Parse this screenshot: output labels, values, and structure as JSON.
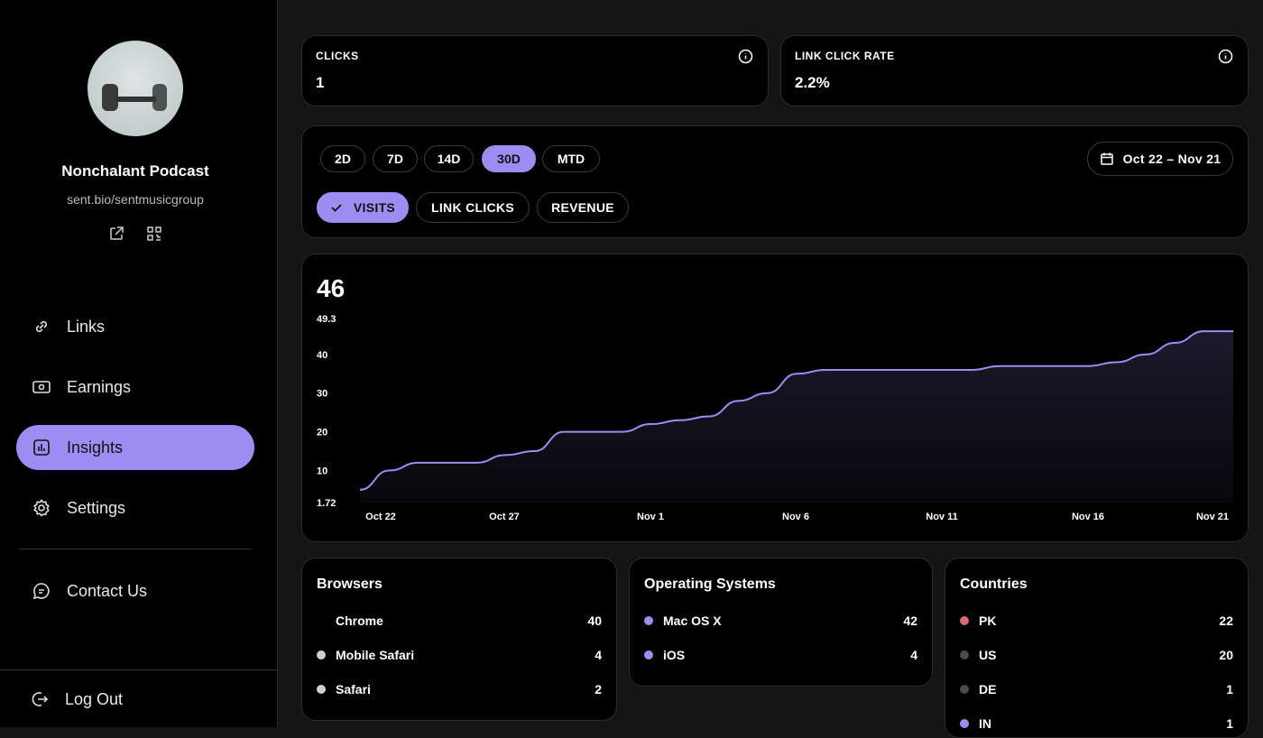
{
  "profile": {
    "name": "Nonchalant Podcast",
    "url": "sent.bio/sentmusicgroup"
  },
  "nav": [
    {
      "label": "Links",
      "icon": "link-icon"
    },
    {
      "label": "Earnings",
      "icon": "money-icon"
    },
    {
      "label": "Insights",
      "icon": "chart-icon",
      "active": true
    },
    {
      "label": "Settings",
      "icon": "gear-icon"
    },
    {
      "label": "Contact Us",
      "icon": "chat-icon"
    },
    {
      "label": "Log Out",
      "icon": "logout-icon"
    }
  ],
  "kpis": [
    {
      "label": "CLICKS",
      "value": "1"
    },
    {
      "label": "LINK CLICK RATE",
      "value": "2.2%"
    }
  ],
  "ranges": [
    "2D",
    "7D",
    "14D",
    "30D",
    "MTD"
  ],
  "active_range": "30D",
  "date_range": "Oct 22 – Nov 21",
  "metrics": [
    "VISITS",
    "LINK CLICKS",
    "REVENUE"
  ],
  "active_metric": "VISITS",
  "accent": "#9d8cf2",
  "chart_data": {
    "type": "area",
    "total": "46",
    "ylim": [
      1.72,
      49.3
    ],
    "yticks": [
      "49.3",
      "40",
      "30",
      "20",
      "10",
      "1.72"
    ],
    "xticks": [
      "Oct 22",
      "Oct 27",
      "Nov 1",
      "Nov 6",
      "Nov 11",
      "Nov 16",
      "Nov 21"
    ],
    "x": [
      "Oct 22",
      "Oct 23",
      "Oct 24",
      "Oct 25",
      "Oct 26",
      "Oct 27",
      "Oct 28",
      "Oct 29",
      "Oct 30",
      "Oct 31",
      "Nov 1",
      "Nov 2",
      "Nov 3",
      "Nov 4",
      "Nov 5",
      "Nov 6",
      "Nov 7",
      "Nov 8",
      "Nov 9",
      "Nov 10",
      "Nov 11",
      "Nov 12",
      "Nov 13",
      "Nov 14",
      "Nov 15",
      "Nov 16",
      "Nov 17",
      "Nov 18",
      "Nov 19",
      "Nov 20",
      "Nov 21"
    ],
    "values": [
      5,
      10,
      12,
      12,
      12,
      14,
      15,
      20,
      20,
      20,
      22,
      23,
      24,
      28,
      30,
      35,
      36,
      36,
      36,
      36,
      36,
      36,
      37,
      37,
      37,
      37,
      38,
      40,
      43,
      46,
      46
    ]
  },
  "browsers": {
    "title": "Browsers",
    "items": [
      {
        "label": "Chrome",
        "value": "40",
        "color": "#000000"
      },
      {
        "label": "Mobile Safari",
        "value": "4",
        "color": "#cfcfcf"
      },
      {
        "label": "Safari",
        "value": "2",
        "color": "#cfcfcf"
      }
    ]
  },
  "os": {
    "title": "Operating Systems",
    "items": [
      {
        "label": "Mac OS X",
        "value": "42",
        "color": "#9d8cf2"
      },
      {
        "label": "iOS",
        "value": "4",
        "color": "#9d8cf2"
      }
    ]
  },
  "countries": {
    "title": "Countries",
    "items": [
      {
        "label": "PK",
        "value": "22",
        "color": "#d9687a"
      },
      {
        "label": "US",
        "value": "20",
        "color": "#4a4a4a"
      },
      {
        "label": "DE",
        "value": "1",
        "color": "#4a4a4a"
      },
      {
        "label": "IN",
        "value": "1",
        "color": "#9d8cf2"
      }
    ]
  }
}
